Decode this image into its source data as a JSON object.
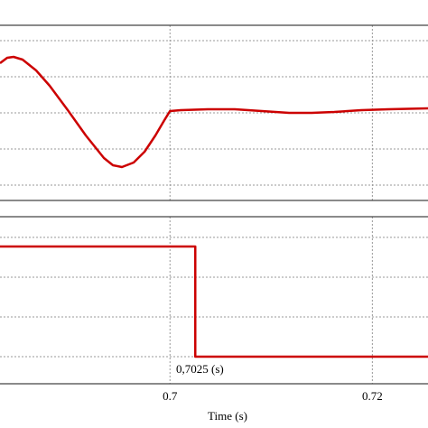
{
  "chart_data": [
    {
      "type": "line",
      "x": [
        0.6832,
        0.68391,
        0.68454,
        0.68543,
        0.68677,
        0.68811,
        0.6899,
        0.69168,
        0.69347,
        0.69436,
        0.69525,
        0.69641,
        0.69749,
        0.69856,
        0.69945,
        0.7,
        0.70106,
        0.70374,
        0.70641,
        0.70909,
        0.71177,
        0.714,
        0.71624,
        0.71891,
        0.72159,
        0.72552
      ],
      "series": [
        {
          "color": "#cc0000",
          "values": [
            3.375,
            3.525,
            3.55,
            3.475,
            3.175,
            2.75,
            2.075,
            1.375,
            0.75,
            0.55,
            0.5,
            0.625,
            0.925,
            1.375,
            1.8,
            2.05,
            2.075,
            2.1,
            2.1,
            2.05,
            2,
            2,
            2.025,
            2.075,
            2.1,
            2.125
          ]
        }
      ],
      "xlim": [
        0.6832,
        0.7255
      ],
      "ylim": [
        -0.425,
        4.425
      ],
      "yticks": [
        0,
        1,
        2,
        3,
        4
      ],
      "grid": true
    },
    {
      "type": "line",
      "x": [
        0.6832,
        0.7025,
        0.7025,
        0.7255
      ],
      "series": [
        {
          "color": "#cc0000",
          "values": [
            2.77,
            2.77,
            0,
            0
          ]
        }
      ],
      "annotation": "0,7025 (s)",
      "xlabel": "Time (s)",
      "xlim": [
        0.6832,
        0.7255
      ],
      "ylim": [
        -0.68,
        3.52
      ],
      "xticks": [
        0.7,
        0.72
      ],
      "yticks": [
        0,
        1,
        2,
        3
      ],
      "grid": true
    }
  ]
}
